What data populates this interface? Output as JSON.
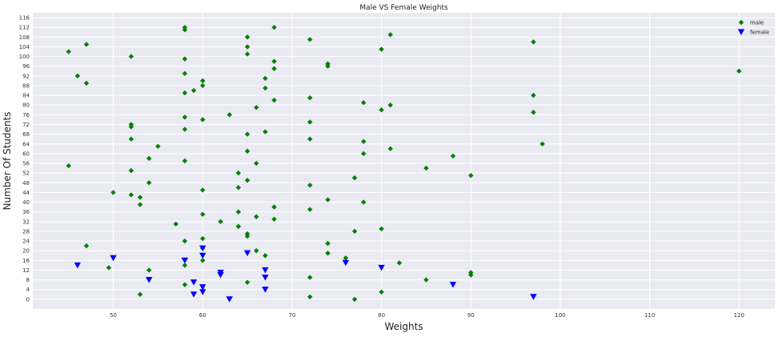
{
  "chart_data": {
    "type": "scatter",
    "title": "Male VS Female Weights",
    "xlabel": "Weights",
    "ylabel": "Number Of Students",
    "xlim": [
      41,
      124
    ],
    "ylim": [
      -4,
      118
    ],
    "xticks": [
      50,
      60,
      70,
      80,
      90,
      100,
      110,
      120
    ],
    "yticks": [
      0,
      4,
      8,
      12,
      16,
      20,
      24,
      28,
      32,
      36,
      40,
      44,
      48,
      52,
      56,
      60,
      64,
      68,
      72,
      76,
      80,
      84,
      88,
      92,
      96,
      100,
      104,
      108,
      112,
      116
    ],
    "grid": true,
    "legend_position": "top-right",
    "series": [
      {
        "name": "male",
        "marker": "diamond",
        "color": "#008000",
        "points": [
          [
            45,
            102
          ],
          [
            45,
            55
          ],
          [
            46,
            92
          ],
          [
            47,
            105
          ],
          [
            47,
            89
          ],
          [
            47,
            22
          ],
          [
            49.5,
            13
          ],
          [
            50,
            44
          ],
          [
            52,
            100
          ],
          [
            52,
            72
          ],
          [
            52,
            71
          ],
          [
            52,
            66
          ],
          [
            52,
            53
          ],
          [
            52,
            43
          ],
          [
            53,
            42
          ],
          [
            53,
            39
          ],
          [
            53,
            2
          ],
          [
            54,
            58
          ],
          [
            54,
            48
          ],
          [
            54,
            12
          ],
          [
            55,
            63
          ],
          [
            57,
            31
          ],
          [
            58,
            112
          ],
          [
            58,
            111
          ],
          [
            58,
            99
          ],
          [
            58,
            93
          ],
          [
            58,
            85
          ],
          [
            58,
            75
          ],
          [
            58,
            70
          ],
          [
            58,
            57
          ],
          [
            58,
            24
          ],
          [
            58,
            14
          ],
          [
            58,
            6
          ],
          [
            59,
            86
          ],
          [
            60,
            90
          ],
          [
            60,
            88
          ],
          [
            60,
            74
          ],
          [
            60,
            45
          ],
          [
            60,
            35
          ],
          [
            60,
            25
          ],
          [
            60,
            21
          ],
          [
            60,
            16
          ],
          [
            62,
            32
          ],
          [
            63,
            76
          ],
          [
            64,
            52
          ],
          [
            64,
            46
          ],
          [
            64,
            36
          ],
          [
            64,
            30
          ],
          [
            65,
            108
          ],
          [
            65,
            104
          ],
          [
            65,
            101
          ],
          [
            65,
            68
          ],
          [
            65,
            61
          ],
          [
            65,
            49
          ],
          [
            65,
            27
          ],
          [
            65,
            26
          ],
          [
            65,
            7
          ],
          [
            66,
            79
          ],
          [
            66,
            56
          ],
          [
            66,
            34
          ],
          [
            66,
            20
          ],
          [
            67,
            91
          ],
          [
            67,
            87
          ],
          [
            67,
            69
          ],
          [
            67,
            18
          ],
          [
            68,
            112
          ],
          [
            68,
            98
          ],
          [
            68,
            95
          ],
          [
            68,
            82
          ],
          [
            68,
            38
          ],
          [
            68,
            33
          ],
          [
            72,
            107
          ],
          [
            72,
            83
          ],
          [
            72,
            73
          ],
          [
            72,
            66
          ],
          [
            72,
            47
          ],
          [
            72,
            37
          ],
          [
            72,
            9
          ],
          [
            72,
            1
          ],
          [
            74,
            97
          ],
          [
            74,
            96
          ],
          [
            74,
            41
          ],
          [
            74,
            23
          ],
          [
            74,
            19
          ],
          [
            76,
            17
          ],
          [
            77,
            50
          ],
          [
            77,
            28
          ],
          [
            77,
            0
          ],
          [
            78,
            81
          ],
          [
            78,
            65
          ],
          [
            78,
            60
          ],
          [
            78,
            40
          ],
          [
            80,
            103
          ],
          [
            80,
            78
          ],
          [
            80,
            29
          ],
          [
            80,
            3
          ],
          [
            81,
            109
          ],
          [
            81,
            80
          ],
          [
            81,
            62
          ],
          [
            82,
            15
          ],
          [
            85,
            54
          ],
          [
            85,
            8
          ],
          [
            88,
            59
          ],
          [
            90,
            51
          ],
          [
            90,
            11
          ],
          [
            90,
            10
          ],
          [
            97,
            106
          ],
          [
            97,
            84
          ],
          [
            97,
            77
          ],
          [
            98,
            64
          ],
          [
            120,
            94
          ]
        ]
      },
      {
        "name": "female",
        "marker": "triangle-down",
        "color": "#0000ff",
        "points": [
          [
            46,
            14
          ],
          [
            50,
            17
          ],
          [
            54,
            8
          ],
          [
            58,
            16
          ],
          [
            59,
            7
          ],
          [
            59,
            2
          ],
          [
            60,
            21
          ],
          [
            60,
            18
          ],
          [
            60,
            5
          ],
          [
            60,
            3
          ],
          [
            62,
            11
          ],
          [
            62,
            10
          ],
          [
            63,
            0
          ],
          [
            65,
            19
          ],
          [
            67,
            12
          ],
          [
            67,
            9
          ],
          [
            67,
            4
          ],
          [
            76,
            15
          ],
          [
            80,
            13
          ],
          [
            88,
            6
          ],
          [
            97,
            1
          ]
        ]
      }
    ]
  }
}
